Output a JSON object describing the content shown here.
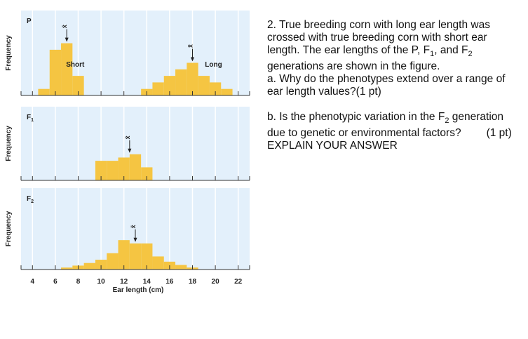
{
  "question": {
    "number_line": "2.  True breeding corn with long ear length was crossed with true breeding corn with short ear length.  The ear lengths of the P, F",
    "sub1": "1",
    "mid": ", and F",
    "sub2": "2",
    "end_line": " generations are shown in the figure.",
    "part_a": "a.  Why do the phenotypes extend over a range of ear length values?(1 pt)",
    "part_b_1": "b.  Is the phenotypic variation in the F",
    "part_b_sub": "2",
    "part_b_2": " generation due to genetic or environmental factors?",
    "part_b_pts": "(1 pt)",
    "explain": "EXPLAIN YOUR ANSWER"
  },
  "colors": {
    "panel_bg": "#e3f0fb",
    "bar": "#f5c542",
    "grid": "#ffffff",
    "axis": "#333333"
  },
  "chart_data": {
    "type": "bar",
    "xlabel": "Ear length (cm)",
    "ylabel": "Frequency",
    "x_ticks": [
      4,
      6,
      8,
      10,
      12,
      14,
      16,
      18,
      20,
      22
    ],
    "bin_width_cm": 1,
    "panels": [
      {
        "label": "P",
        "label_sub": "",
        "mean_symbol": "x̄",
        "series": [
          {
            "name": "Short",
            "bins": [
              {
                "x": 5,
                "y": 1
              },
              {
                "x": 6,
                "y": 7
              },
              {
                "x": 7,
                "y": 8
              },
              {
                "x": 8,
                "y": 3
              }
            ],
            "mean": 7
          },
          {
            "name": "Long",
            "bins": [
              {
                "x": 14,
                "y": 1
              },
              {
                "x": 15,
                "y": 2
              },
              {
                "x": 16,
                "y": 3
              },
              {
                "x": 17,
                "y": 4
              },
              {
                "x": 18,
                "y": 5
              },
              {
                "x": 19,
                "y": 3
              },
              {
                "x": 20,
                "y": 2
              },
              {
                "x": 21,
                "y": 1
              }
            ],
            "mean": 18
          }
        ]
      },
      {
        "label": "F",
        "label_sub": "1",
        "mean_symbol": "x̄",
        "series": [
          {
            "name": "",
            "bins": [
              {
                "x": 10,
                "y": 3
              },
              {
                "x": 11,
                "y": 3
              },
              {
                "x": 12,
                "y": 3.5
              },
              {
                "x": 13,
                "y": 4
              },
              {
                "x": 14,
                "y": 2
              }
            ],
            "mean": 12.5
          }
        ]
      },
      {
        "label": "F",
        "label_sub": "2",
        "mean_symbol": "x̄",
        "series": [
          {
            "name": "",
            "bins": [
              {
                "x": 7,
                "y": 0.3
              },
              {
                "x": 8,
                "y": 0.6
              },
              {
                "x": 9,
                "y": 1
              },
              {
                "x": 10,
                "y": 1.5
              },
              {
                "x": 11,
                "y": 2.5
              },
              {
                "x": 12,
                "y": 4.5
              },
              {
                "x": 13,
                "y": 4
              },
              {
                "x": 14,
                "y": 4
              },
              {
                "x": 15,
                "y": 2
              },
              {
                "x": 16,
                "y": 1.2
              },
              {
                "x": 17,
                "y": 0.7
              },
              {
                "x": 18,
                "y": 0.3
              }
            ],
            "mean": 13
          }
        ]
      }
    ]
  }
}
